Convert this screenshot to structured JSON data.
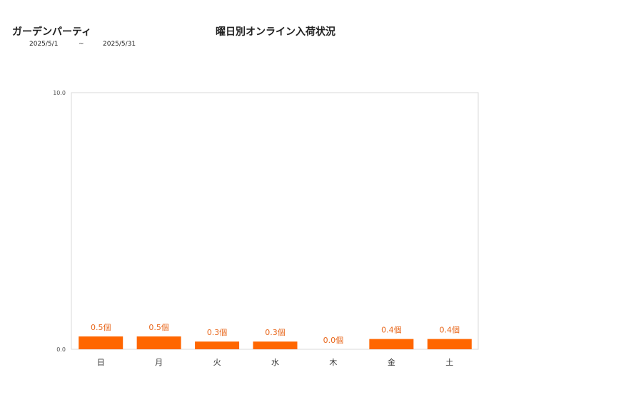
{
  "header": {
    "shop_name": "ガーデンパーティ",
    "title": "曜日別オンライン入荷状況",
    "date_start": "2025/5/1",
    "date_sep": "~",
    "date_end": "2025/5/31"
  },
  "colors": {
    "bar": "#ff6600",
    "data_label": "#e8661a",
    "frame": "#d9d9d9"
  },
  "chart_data": {
    "type": "bar",
    "title": "曜日別オンライン入荷状況",
    "categories": [
      "日",
      "月",
      "火",
      "水",
      "木",
      "金",
      "土"
    ],
    "values": [
      0.5,
      0.5,
      0.3,
      0.3,
      0.0,
      0.4,
      0.4
    ],
    "value_labels": [
      "0.5個",
      "0.5個",
      "0.3個",
      "0.3個",
      "0.0個",
      "0.4個",
      "0.4個"
    ],
    "ylim": [
      0,
      10
    ],
    "y_tick_labels": [
      "0.0",
      "10.0"
    ],
    "grid": false,
    "legend": "none"
  }
}
